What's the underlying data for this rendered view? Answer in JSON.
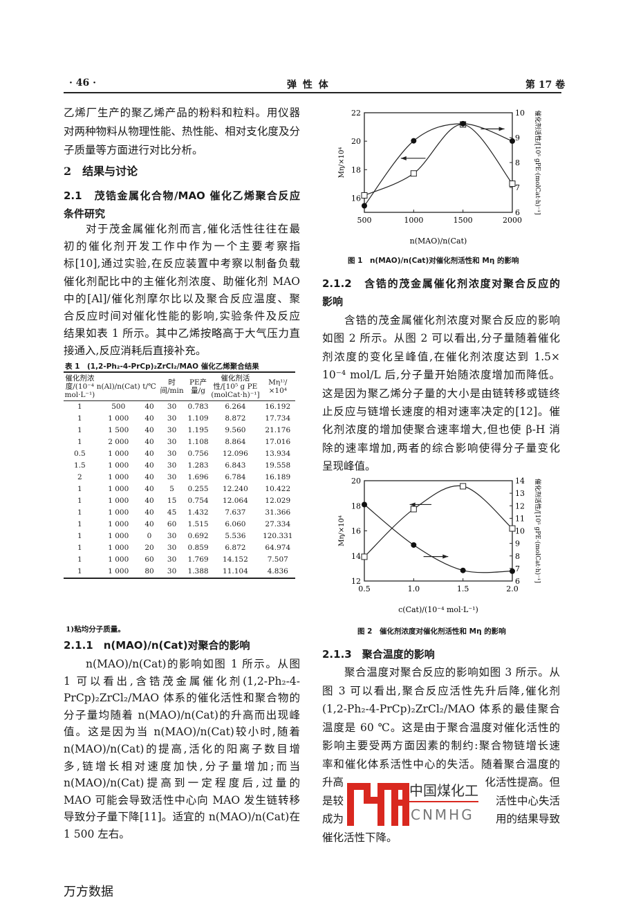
{
  "header": {
    "page_number": "· 46 ·",
    "journal": "弹 性 体",
    "volume": "第 17 卷"
  },
  "left": {
    "intro_lines": [
      "乙烯厂生产的聚乙烯产品的粉料和粒料。用仪器",
      "对两种物料从物理性能、热性能、相对支化度及分",
      "子质量等方面进行对比分析。"
    ],
    "section_2": "2　结果与讨论",
    "section_2_1": [
      "2.1　茂锆金属化合物/MAO 催化乙烯聚合反应",
      "条件研究"
    ],
    "para1": [
      "对于茂金属催化剂而言,催化活性往往在最",
      "初的催化剂开发工作中作为一个主要考察指",
      "标[10],通过实验,在反应装置中考察以制备负载",
      "催化剂配比中的主催化剂浓度、助催化剂 MAO",
      "中的[Al]/催化剂摩尔比以及聚合反应温度、聚",
      "合反应时间对催化性能的影响,实验条件及反应",
      "结果如表 1 所示。其中乙烯按略高于大气压力直",
      "接通入,反应消耗后直接补充。"
    ],
    "table": {
      "title": "表 1　(1,2-Ph₂-4-PrCp)₂ZrCl₂/MAO 催化乙烯聚合结果",
      "headers": [
        "催化剂浓度/(10⁻⁴ mol·L⁻¹)",
        "n(Al)/n(Cat)",
        "t/℃",
        "时间/min",
        "PE产量/g",
        "催化剂活性/[10⁵ g PE (molCat·h)⁻¹]",
        "Mη¹⁾/×10⁴"
      ],
      "rows": [
        [
          "1",
          "500",
          "40",
          "30",
          "0.783",
          "6.264",
          "16.192"
        ],
        [
          "1",
          "1 000",
          "40",
          "30",
          "1.109",
          "8.872",
          "17.734"
        ],
        [
          "1",
          "1 500",
          "40",
          "30",
          "1.195",
          "9.560",
          "21.176"
        ],
        [
          "1",
          "2 000",
          "40",
          "30",
          "1.108",
          "8.864",
          "17.016"
        ],
        [
          "0.5",
          "1 000",
          "40",
          "30",
          "0.756",
          "12.096",
          "13.934"
        ],
        [
          "1.5",
          "1 000",
          "40",
          "30",
          "1.283",
          "6.843",
          "19.558"
        ],
        [
          "2",
          "1 000",
          "40",
          "30",
          "1.696",
          "6.784",
          "16.189"
        ],
        [
          "1",
          "1 000",
          "40",
          "5",
          "0.255",
          "12.240",
          "10.422"
        ],
        [
          "1",
          "1 000",
          "40",
          "15",
          "0.754",
          "12.064",
          "12.029"
        ],
        [
          "1",
          "1 000",
          "40",
          "45",
          "1.432",
          "7.637",
          "31.366"
        ],
        [
          "1",
          "1 000",
          "40",
          "60",
          "1.515",
          "6.060",
          "27.334"
        ],
        [
          "1",
          "1 000",
          "0",
          "30",
          "0.692",
          "5.536",
          "120.331"
        ],
        [
          "1",
          "1 000",
          "20",
          "30",
          "0.859",
          "6.872",
          "64.974"
        ],
        [
          "1",
          "1 000",
          "60",
          "30",
          "1.769",
          "14.152",
          "7.507"
        ],
        [
          "1",
          "1 000",
          "80",
          "30",
          "1.388",
          "11.104",
          "4.836"
        ]
      ],
      "footnote": "1)粘均分子质量。"
    },
    "section_2_1_1": "2.1.1　n(MAO)/n(Cat)对聚合的影响",
    "para2": [
      "n(MAO)/n(Cat)的影响如图 1 所示。从图",
      "1 可以看出,含锆茂金属催化剂(1,2-Ph₂-4-",
      "PrCp)₂ZrCl₂/MAO 体系的催化活性和聚合物的",
      "分子量均随着 n(MAO)/n(Cat)的升高而出现峰",
      "值。这是因为当 n(MAO)/n(Cat)较小时,随着",
      "n(MAO)/n(Cat)的提高,活化的阳离子数目增",
      "多,链增长相对速度加快,分子量增加;而当",
      "n(MAO)/n(Cat)提高到一定程度后,过量的",
      "MAO 可能会导致活性中心向 MAO 发生链转移",
      "导致分子量下降[11]。适宜的 n(MAO)/n(Cat)在",
      "1 500 左右。"
    ]
  },
  "right": {
    "section_2_1_2": [
      "2.1.2　含锆的茂金属催化剂浓度对聚合反应的",
      "影响"
    ],
    "para3": [
      "含锆的茂金属催化剂浓度对聚合反应的影响",
      "如图 2 所示。从图 2 可以看出,分子量随着催化",
      "剂浓度的变化呈峰值,在催化剂浓度达到 1.5×",
      "10⁻⁴ mol/L 后,分子量开始随浓度增加而降低。",
      "这是因为聚乙烯分子量的大小是由链转移或链终",
      "止反应与链增长速度的相对速率决定的[12]。催",
      "化剂浓度的增加使聚合速率增大,但也使 β-H 消",
      "除的速率增加,两者的综合影响使得分子量变化",
      "呈现峰值。"
    ],
    "section_2_1_3": "2.1.3　聚合温度的影响",
    "para4": [
      "聚合温度对聚合反应的影响如图 3 所示。从",
      "图 3 可以看出,聚合反应活性先升后降,催化剂",
      "(1,2-Ph₂-4-PrCp)₂ZrCl₂/MAO 体系的最佳聚合",
      "温度是 60 ℃。这是由于聚合温度对催化活性的",
      "影响主要受两方面因素的制约:聚合物链增长速",
      "率和催化体系活性中心的失活。随着聚合温度的"
    ],
    "para4_fragments": [
      [
        "升高",
        "化活性提高。但"
      ],
      [
        "是较",
        "活性中心失活"
      ],
      [
        "成为",
        "用的结果导致"
      ]
    ],
    "para4_last": "催化活性下降。"
  },
  "chart_data": [
    {
      "type": "line",
      "title": "图 1　n(MAO)/n(Cat)对催化剂活性和 Mη 的影响",
      "xlabel": "n(MAO)/n(Cat)",
      "ylabel_left": "Mη/×10⁴",
      "ylabel_right": "催化剂活性/[10⁵ gPE·(molCat·h)⁻¹]",
      "x": [
        500,
        1000,
        1500,
        2000
      ],
      "xlim": [
        500,
        2000
      ],
      "xticks": [
        500,
        1000,
        1500,
        2000
      ],
      "ylim_left": [
        15,
        22
      ],
      "yticks_left": [
        16,
        18,
        20,
        22
      ],
      "ylim_right": [
        6,
        10
      ],
      "yticks_right": [
        6,
        7,
        8,
        9,
        10
      ],
      "series": [
        {
          "axis": "left",
          "marker": "open-square",
          "values": [
            16.192,
            17.734,
            21.176,
            17.016
          ]
        },
        {
          "axis": "right",
          "marker": "filled-circle",
          "values": [
            6.264,
            8.872,
            9.56,
            8.864
          ]
        }
      ],
      "grid": false
    },
    {
      "type": "line",
      "title": "图 2　催化剂浓度对催化剂活性和 Mη 的影响",
      "xlabel": "c(Cat)/(10⁻⁴ mol·L⁻¹)",
      "ylabel_left": "Mη/×10⁴",
      "ylabel_right": "催化剂活性/[10⁵ gPE·(molCat·h)⁻¹]",
      "x": [
        0.5,
        1.0,
        1.5,
        2.0
      ],
      "xlim": [
        0.5,
        2.0
      ],
      "xticks": [
        "0.5",
        "1.0",
        "1.5",
        "2.0"
      ],
      "ylim_left": [
        12,
        20
      ],
      "yticks_left": [
        12,
        14,
        16,
        18,
        20
      ],
      "ylim_right": [
        6,
        14
      ],
      "yticks_right": [
        6,
        7,
        8,
        9,
        10,
        11,
        12,
        13,
        14
      ],
      "series": [
        {
          "axis": "left",
          "marker": "open-square",
          "values": [
            13.934,
            17.734,
            19.558,
            16.189
          ]
        },
        {
          "axis": "right",
          "marker": "filled-circle",
          "values": [
            12.096,
            8.872,
            6.843,
            6.784
          ]
        }
      ],
      "grid": false
    }
  ],
  "watermark": {
    "logo_text": "MH",
    "cn_text": "中国煤化工",
    "en_text": "CNMHG",
    "color": "#d9281f"
  },
  "footer": {
    "source": "万方数据"
  }
}
